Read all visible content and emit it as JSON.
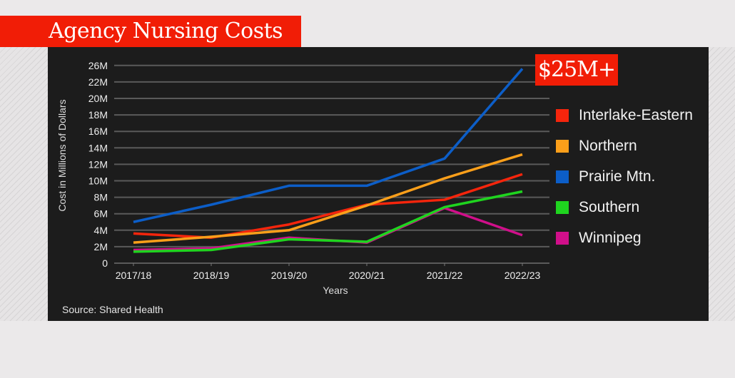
{
  "title": "Agency Nursing Costs",
  "badge": "$25M+",
  "source": "Source: Shared Health",
  "chart_data": {
    "type": "line",
    "xlabel": "Years",
    "ylabel": "Cost in Millions of Dollars",
    "categories": [
      "2017/18",
      "2018/19",
      "2019/20",
      "2020/21",
      "2021/22",
      "2022/23"
    ],
    "y_ticks": [
      "0",
      "2M",
      "4M",
      "6M",
      "8M",
      "10M",
      "12M",
      "14M",
      "16M",
      "18M",
      "20M",
      "22M",
      "26M"
    ],
    "y_tick_values": [
      0,
      2,
      4,
      6,
      8,
      10,
      12,
      14,
      16,
      18,
      20,
      22,
      26
    ],
    "ylim": [
      0,
      26
    ],
    "grid": true,
    "legend": "right",
    "series": [
      {
        "name": "Interlake-Eastern",
        "color": "#f5250c",
        "values": [
          3.6,
          3.1,
          4.7,
          7.1,
          7.7,
          10.8
        ]
      },
      {
        "name": "Northern",
        "color": "#fb9f1a",
        "values": [
          2.5,
          3.2,
          4.0,
          7.0,
          10.3,
          13.2
        ]
      },
      {
        "name": "Prairie Mtn.",
        "color": "#0c5ec8",
        "values": [
          5.0,
          7.1,
          9.4,
          9.4,
          12.7,
          25.2
        ]
      },
      {
        "name": "Southern",
        "color": "#1fd41f",
        "values": [
          1.4,
          1.6,
          2.9,
          2.6,
          6.8,
          8.7
        ]
      },
      {
        "name": "Winnipeg",
        "color": "#d00f8a",
        "values": [
          1.6,
          1.8,
          3.1,
          2.5,
          6.7,
          3.4
        ]
      }
    ]
  }
}
